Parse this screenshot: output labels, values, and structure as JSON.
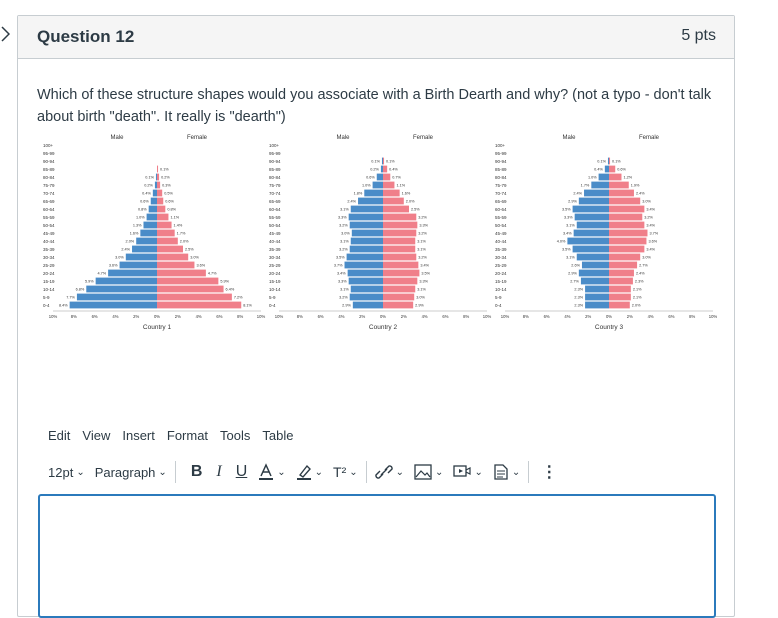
{
  "question": {
    "title": "Question 12",
    "points": "5 pts",
    "text": "Which of these structure shapes would you associate with a Birth Dearth and why? (not a typo - don't talk about birth \"death\".  It really is \"dearth\")"
  },
  "pyramids": [
    {
      "caption": "Country 1",
      "male_label": "Male",
      "female_label": "Female",
      "age_groups": [
        "100+",
        "95-99",
        "90-94",
        "85-89",
        "80-84",
        "75-79",
        "70-74",
        "65-69",
        "60-64",
        "55-59",
        "50-54",
        "45-49",
        "40-44",
        "35-39",
        "30-34",
        "25-29",
        "20-24",
        "15-19",
        "10-14",
        "5-9",
        "0-4"
      ],
      "male": [
        0.0,
        0.0,
        0.0,
        0.0,
        0.1,
        0.2,
        0.4,
        0.6,
        0.8,
        1.0,
        1.3,
        1.6,
        2.0,
        2.4,
        3.0,
        3.6,
        4.7,
        5.9,
        6.8,
        7.7,
        8.4
      ],
      "female": [
        0.0,
        0.0,
        0.0,
        0.1,
        0.2,
        0.3,
        0.5,
        0.6,
        0.8,
        1.1,
        1.4,
        1.7,
        2.0,
        2.5,
        3.0,
        3.6,
        4.7,
        5.9,
        6.4,
        7.2,
        8.1
      ],
      "x_ticks": [
        "10%",
        "8%",
        "6%",
        "4%",
        "2%",
        "0%",
        "2%",
        "4%",
        "6%",
        "8%",
        "10%"
      ]
    },
    {
      "caption": "Country 2",
      "male_label": "Male",
      "female_label": "Female",
      "age_groups": [
        "100+",
        "95-99",
        "90-94",
        "85-89",
        "80-84",
        "75-79",
        "70-74",
        "65-69",
        "60-64",
        "55-59",
        "50-54",
        "45-49",
        "40-44",
        "35-39",
        "30-34",
        "25-29",
        "20-24",
        "15-19",
        "10-14",
        "5-9",
        "0-4"
      ],
      "male": [
        0.0,
        0.0,
        0.1,
        0.2,
        0.6,
        1.0,
        1.8,
        2.4,
        3.1,
        3.3,
        3.2,
        3.0,
        3.1,
        3.2,
        3.5,
        3.7,
        3.4,
        3.3,
        3.1,
        3.2,
        2.9
      ],
      "female": [
        0.0,
        0.0,
        0.1,
        0.4,
        0.7,
        1.1,
        1.6,
        2.0,
        2.5,
        3.2,
        3.3,
        3.2,
        3.1,
        3.1,
        3.2,
        3.4,
        3.5,
        3.3,
        3.1,
        3.0,
        2.9
      ],
      "x_ticks": [
        "10%",
        "8%",
        "6%",
        "4%",
        "2%",
        "0%",
        "2%",
        "4%",
        "6%",
        "8%",
        "10%"
      ]
    },
    {
      "caption": "Country 3",
      "male_label": "Male",
      "female_label": "Female",
      "age_groups": [
        "100+",
        "95-99",
        "90-94",
        "85-89",
        "80-84",
        "75-79",
        "70-74",
        "65-69",
        "60-64",
        "55-59",
        "50-54",
        "45-49",
        "40-44",
        "35-39",
        "30-34",
        "25-29",
        "20-24",
        "15-19",
        "10-14",
        "5-9",
        "0-4"
      ],
      "male": [
        0.0,
        0.0,
        0.1,
        0.4,
        1.0,
        1.7,
        2.4,
        2.9,
        3.5,
        3.3,
        3.1,
        3.4,
        4.0,
        3.5,
        3.1,
        2.6,
        2.9,
        2.7,
        2.3,
        2.3,
        2.3
      ],
      "female": [
        0.0,
        0.0,
        0.1,
        0.6,
        1.2,
        1.9,
        2.4,
        3.0,
        3.4,
        3.2,
        3.4,
        3.7,
        3.6,
        3.4,
        3.0,
        2.7,
        2.4,
        2.3,
        2.1,
        2.1,
        2.0
      ],
      "x_ticks": [
        "10%",
        "8%",
        "6%",
        "4%",
        "2%",
        "0%",
        "2%",
        "4%",
        "6%",
        "8%",
        "10%"
      ]
    }
  ],
  "colors": {
    "male": "#4a8cc8",
    "female": "#f07f8a",
    "focus": "#2b7abc"
  },
  "editor": {
    "menu": [
      "Edit",
      "View",
      "Insert",
      "Format",
      "Tools",
      "Table"
    ],
    "font_size": "12pt",
    "block_format": "Paragraph",
    "bold": "B",
    "italic": "I",
    "underline": "U",
    "superscript": "T²",
    "icons": [
      "font-color-icon",
      "highlight-icon",
      "superscript-icon",
      "link-icon",
      "image-icon",
      "media-icon",
      "document-icon",
      "more-icon"
    ],
    "answer": ""
  }
}
